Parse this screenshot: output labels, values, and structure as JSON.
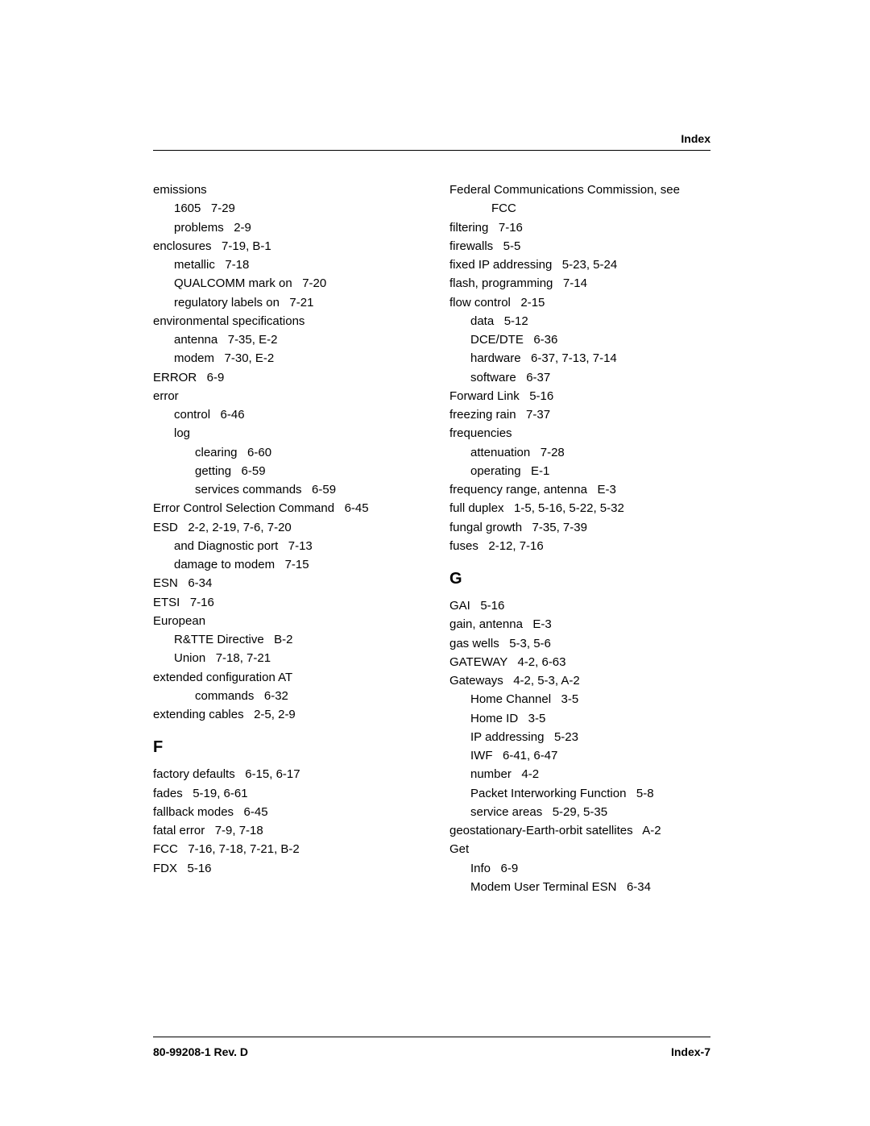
{
  "header": {
    "label": "Index"
  },
  "footer": {
    "left": "80-99208-1 Rev. D",
    "right": "Index-7"
  },
  "sections": {
    "F": "F",
    "G": "G"
  },
  "left_col": [
    {
      "t": "emissions",
      "indent": 0
    },
    {
      "t": "1605   7-29",
      "indent": 1
    },
    {
      "t": "problems   2-9",
      "indent": 1
    },
    {
      "t": "enclosures   7-19, B-1",
      "indent": 0
    },
    {
      "t": "metallic   7-18",
      "indent": 1
    },
    {
      "t": "QUALCOMM mark on   7-20",
      "indent": 1
    },
    {
      "t": "regulatory labels on   7-21",
      "indent": 1
    },
    {
      "t": "environmental specifications",
      "indent": 0
    },
    {
      "t": "antenna   7-35, E-2",
      "indent": 1
    },
    {
      "t": "modem   7-30, E-2",
      "indent": 1
    },
    {
      "t": "ERROR   6-9",
      "indent": 0
    },
    {
      "t": "error",
      "indent": 0
    },
    {
      "t": "control   6-46",
      "indent": 1
    },
    {
      "t": "log",
      "indent": 1
    },
    {
      "t": "clearing   6-60",
      "indent": 2
    },
    {
      "t": "getting   6-59",
      "indent": 2
    },
    {
      "t": "services commands   6-59",
      "indent": 2
    },
    {
      "t": "Error Control Selection Command   6-45",
      "indent": 0
    },
    {
      "t": "ESD   2-2, 2-19, 7-6, 7-20",
      "indent": 0
    },
    {
      "t": "and Diagnostic port   7-13",
      "indent": 1
    },
    {
      "t": "damage to modem   7-15",
      "indent": 1
    },
    {
      "t": "ESN   6-34",
      "indent": 0
    },
    {
      "t": "ETSI   7-16",
      "indent": 0
    },
    {
      "t": "European",
      "indent": 0
    },
    {
      "t": "R&TTE Directive   B-2",
      "indent": 1
    },
    {
      "t": "Union   7-18, 7-21",
      "indent": 1
    },
    {
      "t": "extended configuration AT",
      "indent": 0
    },
    {
      "t": "commands   6-32",
      "indent": 2
    },
    {
      "t": "extending cables   2-5, 2-9",
      "indent": 0
    },
    {
      "section": "F"
    },
    {
      "t": "factory defaults   6-15, 6-17",
      "indent": 0
    },
    {
      "t": "fades   5-19, 6-61",
      "indent": 0
    },
    {
      "t": "fallback modes   6-45",
      "indent": 0
    },
    {
      "t": "fatal error   7-9, 7-18",
      "indent": 0
    },
    {
      "t": "FCC   7-16, 7-18, 7-21, B-2",
      "indent": 0
    },
    {
      "t": "FDX   5-16",
      "indent": 0
    }
  ],
  "right_col": [
    {
      "t": "Federal Communications Commission, see",
      "indent": 0
    },
    {
      "t": "FCC",
      "indent": 2
    },
    {
      "t": "filtering   7-16",
      "indent": 0
    },
    {
      "t": "firewalls   5-5",
      "indent": 0
    },
    {
      "t": "fixed IP addressing   5-23, 5-24",
      "indent": 0
    },
    {
      "t": "flash, programming   7-14",
      "indent": 0
    },
    {
      "t": "flow control   2-15",
      "indent": 0
    },
    {
      "t": "data   5-12",
      "indent": 1
    },
    {
      "t": "DCE/DTE   6-36",
      "indent": 1
    },
    {
      "t": "hardware   6-37, 7-13, 7-14",
      "indent": 1
    },
    {
      "t": "software   6-37",
      "indent": 1
    },
    {
      "t": "Forward Link   5-16",
      "indent": 0
    },
    {
      "t": "freezing rain   7-37",
      "indent": 0
    },
    {
      "t": "frequencies",
      "indent": 0
    },
    {
      "t": "attenuation   7-28",
      "indent": 1
    },
    {
      "t": "operating   E-1",
      "indent": 1
    },
    {
      "t": "frequency range, antenna   E-3",
      "indent": 0
    },
    {
      "t": "full duplex   1-5, 5-16, 5-22, 5-32",
      "indent": 0
    },
    {
      "t": "fungal growth   7-35, 7-39",
      "indent": 0
    },
    {
      "t": "fuses   2-12, 7-16",
      "indent": 0
    },
    {
      "section": "G"
    },
    {
      "t": "GAI   5-16",
      "indent": 0
    },
    {
      "t": "gain, antenna   E-3",
      "indent": 0
    },
    {
      "t": "gas wells   5-3, 5-6",
      "indent": 0
    },
    {
      "t": "GATEWAY   4-2, 6-63",
      "indent": 0
    },
    {
      "t": "Gateways   4-2, 5-3, A-2",
      "indent": 0
    },
    {
      "t": "Home Channel   3-5",
      "indent": 1
    },
    {
      "t": "Home ID   3-5",
      "indent": 1
    },
    {
      "t": "IP addressing   5-23",
      "indent": 1
    },
    {
      "t": "IWF   6-41, 6-47",
      "indent": 1
    },
    {
      "t": "number   4-2",
      "indent": 1
    },
    {
      "t": "Packet Interworking Function   5-8",
      "indent": 1
    },
    {
      "t": "service areas   5-29, 5-35",
      "indent": 1
    },
    {
      "t": "geostationary-Earth-orbit satellites   A-2",
      "indent": 0
    },
    {
      "t": "Get",
      "indent": 0
    },
    {
      "t": "Info   6-9",
      "indent": 1
    },
    {
      "t": "Modem User Terminal ESN   6-34",
      "indent": 1
    }
  ]
}
